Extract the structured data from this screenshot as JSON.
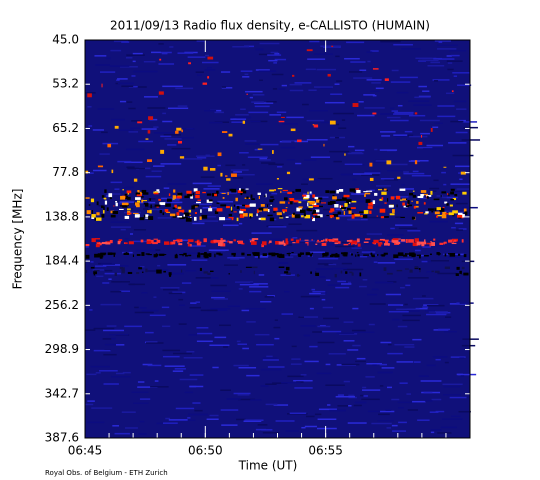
{
  "chart_data": {
    "type": "spectrogram",
    "title": "2011/09/13  Radio flux density, e-CALLISTO (HUMAIN)",
    "y_label": "Frequency [MHz]",
    "x_label": "Time (UT)",
    "credit": "Royal Obs. of Belgium - ETH Zurich",
    "ylim": [
      45,
      387.6
    ],
    "yticks": [
      {
        "value": 45,
        "label": "45.0"
      },
      53.2,
      65.2,
      77.8,
      138.8,
      184.4,
      256.2,
      298.9,
      342.7,
      387.6
    ],
    "xlim": [
      "06:45",
      "07:01"
    ],
    "xticks": [
      "06:45",
      "06:50",
      "06:55"
    ]
  }
}
